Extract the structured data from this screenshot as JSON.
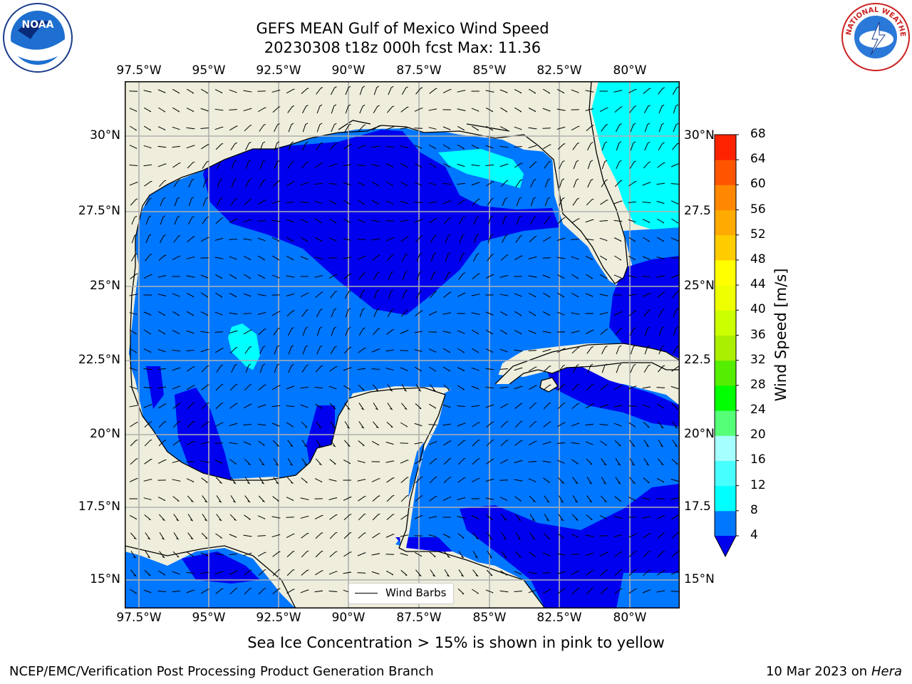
{
  "title_line1": "GEFS MEAN Gulf of Mexico Wind Speed",
  "title_line2": "20230308 t18z 000h fcst   Max: 11.36",
  "lon_ticks": [
    "97.5°W",
    "95°W",
    "92.5°W",
    "90°W",
    "87.5°W",
    "85°W",
    "82.5°W",
    "80°W"
  ],
  "lat_ticks": [
    "30°N",
    "27.5°N",
    "25°N",
    "22.5°N",
    "20°N",
    "17.5°N",
    "15°N"
  ],
  "lat_ticks_right": [
    "30°N",
    "27.5",
    "25°N",
    "22.5",
    "20°N",
    "17.5",
    "15°N"
  ],
  "legend_label": "Wind Barbs",
  "colorbar": {
    "label": "Wind Speed [m/s]",
    "levels": [
      "4",
      "8",
      "12",
      "16",
      "20",
      "24",
      "28",
      "32",
      "36",
      "40",
      "44",
      "48",
      "52",
      "56",
      "60",
      "64",
      "68"
    ],
    "colors": [
      "#0077ff",
      "#00ffff",
      "#48ffff",
      "#a6ffff",
      "#55ff77",
      "#00ff00",
      "#55ee00",
      "#aaee00",
      "#ccff00",
      "#eeff00",
      "#ffff00",
      "#ffcc00",
      "#ffaa00",
      "#ff8800",
      "#ff5500",
      "#ff2200"
    ],
    "under_color": "#0000ee"
  },
  "note": "Sea Ice Concentration > 15% is shown in pink to yellow",
  "footer_left": "NCEP/EMC/Verification Post Processing Product Generation Branch",
  "footer_date": "10 Mar 2023 on",
  "footer_host": "Hera",
  "logos": {
    "left": "NOAA",
    "right": "NATIONAL WEATHER SERVICE"
  },
  "colors": {
    "land": "#efeedc",
    "grid": "#b0b0b0",
    "deep_blue": "#0000ee",
    "mid_blue": "#0077ff",
    "cyan": "#00ffff"
  }
}
